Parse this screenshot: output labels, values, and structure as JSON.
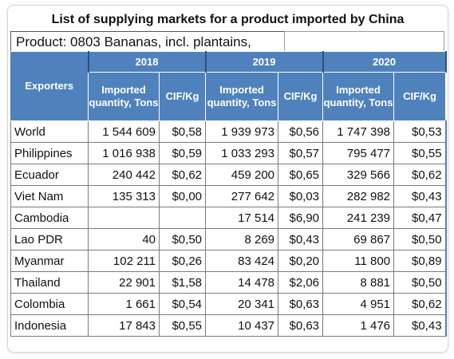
{
  "title": "List of supplying markets for a product imported by China",
  "product_label": "Product: 0803 Bananas, incl. plantains,",
  "header": {
    "exporters": "Exporters",
    "years": [
      "2018",
      "2019",
      "2020"
    ],
    "qty_label": "Imported quantity, Tons",
    "cif_label": "CIF/Kg"
  },
  "rows": [
    {
      "name": "World",
      "v": [
        "1 544 609",
        "$0,58",
        "1 939 973",
        "$0,56",
        "1 747 398",
        "$0,53"
      ]
    },
    {
      "name": "Philippines",
      "v": [
        "1 016 938",
        "$0,59",
        "1 033 293",
        "$0,57",
        "795 477",
        "$0,55"
      ]
    },
    {
      "name": "Ecuador",
      "v": [
        "240 442",
        "$0,62",
        "459 200",
        "$0,65",
        "329 566",
        "$0,62"
      ]
    },
    {
      "name": "Viet Nam",
      "v": [
        "135 313",
        "$0,00",
        "277 642",
        "$0,03",
        "282 982",
        "$0,43"
      ]
    },
    {
      "name": "Cambodia",
      "v": [
        "",
        "",
        "17 514",
        "$6,90",
        "241 239",
        "$0,47"
      ]
    },
    {
      "name": "Lao PDR",
      "v": [
        "40",
        "$0,50",
        "8 269",
        "$0,43",
        "69 867",
        "$0,50"
      ]
    },
    {
      "name": "Myanmar",
      "v": [
        "102 211",
        "$0,26",
        "83 424",
        "$0,20",
        "11 800",
        "$0,89"
      ]
    },
    {
      "name": "Thailand",
      "v": [
        "22 901",
        "$1,58",
        "14 478",
        "$2,06",
        "8 881",
        "$0,50"
      ]
    },
    {
      "name": "Colombia",
      "v": [
        "1 661",
        "$0,54",
        "20 341",
        "$0,63",
        "4 951",
        "$0,62"
      ]
    },
    {
      "name": "Indonesia",
      "v": [
        "17 843",
        "$0,55",
        "10 437",
        "$0,63",
        "1 476",
        "$0,43"
      ]
    }
  ]
}
